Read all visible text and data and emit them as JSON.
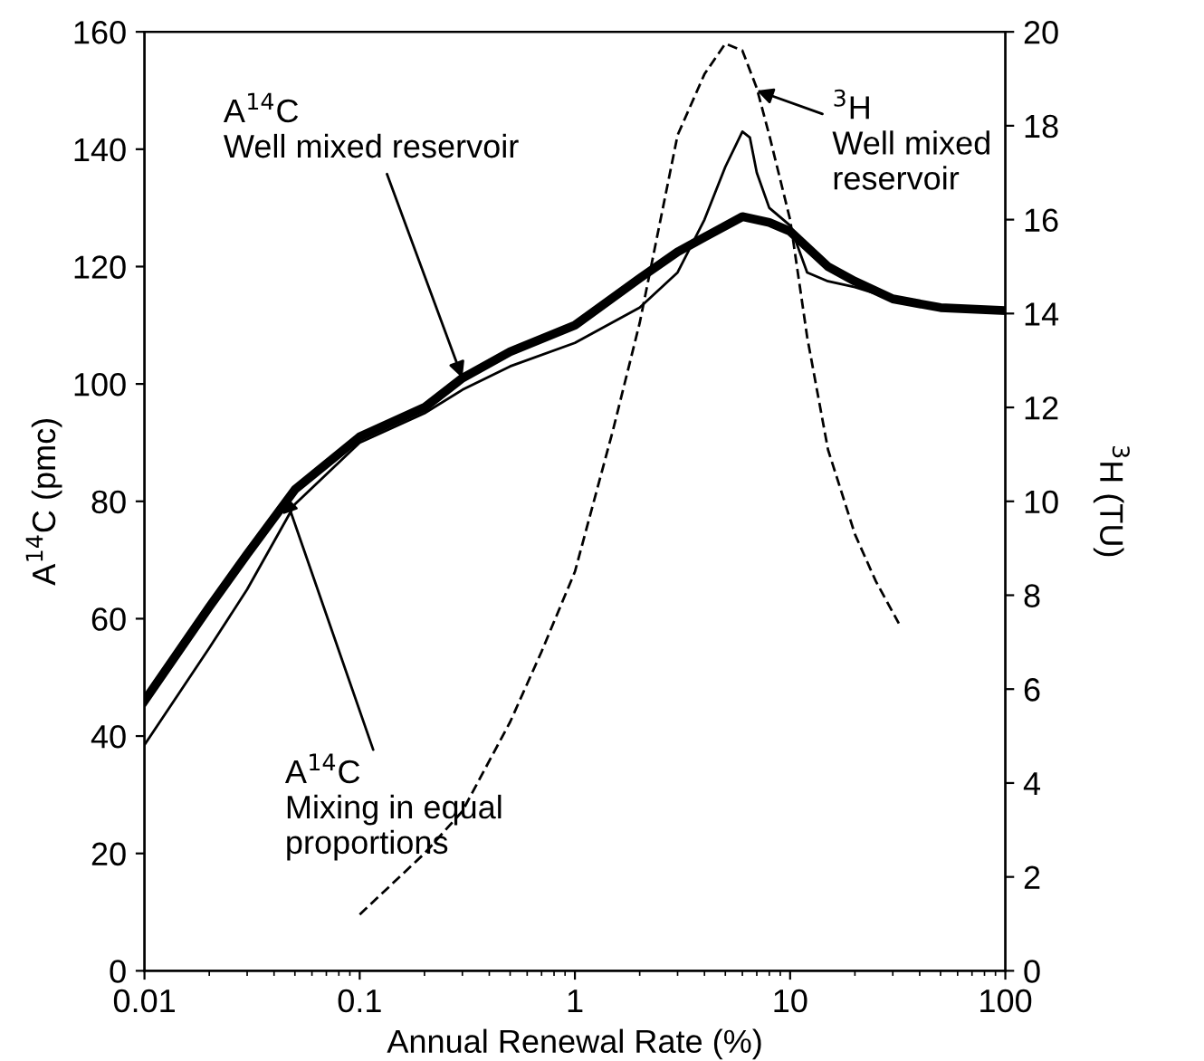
{
  "chart_data": {
    "type": "line",
    "xlabel": "Annual Renewal Rate (%)",
    "ylabel": "A$^{14}$C (pmc)",
    "y2label": "$^{3}$H (TU)",
    "log": "x",
    "xlim": [
      0.01,
      100
    ],
    "xticks": [
      0.01,
      0.1,
      1,
      10,
      100
    ],
    "ylim": [
      0,
      160
    ],
    "yticks": [
      0,
      20,
      40,
      60,
      80,
      100,
      120,
      140,
      160
    ],
    "y2lim": [
      0,
      20
    ],
    "y2ticks": [
      0,
      2,
      4,
      6,
      8,
      10,
      12,
      14,
      16,
      18,
      20
    ],
    "grid": false,
    "marker": "none",
    "series": [
      {
        "color": "#000000",
        "line_style": "solid",
        "x": [
          0.01,
          0.02,
          0.03,
          0.05,
          0.1,
          0.2,
          0.3,
          0.5,
          1,
          2,
          3,
          4,
          6,
          8,
          10,
          15,
          20,
          30,
          50,
          100
        ],
        "values": [
          46,
          62,
          71,
          82,
          91,
          96,
          101,
          105.5,
          110,
          118,
          122.5,
          125,
          128.5,
          127.5,
          126,
          120,
          117.5,
          114.5,
          113,
          112.5
        ]
      },
      {
        "color": "#000000",
        "line_style": "solid",
        "x": [
          0.01,
          0.02,
          0.03,
          0.05,
          0.1,
          0.2,
          0.3,
          0.5,
          1,
          2,
          3,
          4,
          5,
          6,
          6.5,
          7,
          8,
          10,
          12,
          15,
          20,
          30,
          50,
          100
        ],
        "values": [
          38.5,
          55,
          65,
          79.5,
          90,
          95,
          99,
          103,
          107,
          113,
          119,
          128,
          137,
          143,
          142,
          136,
          130,
          127,
          119,
          117.5,
          116.5,
          114.5,
          113,
          112.5
        ]
      },
      {
        "color": "#000000",
        "line_style": "dashed",
        "axis": "y2",
        "x": [
          0.1,
          0.2,
          0.3,
          0.5,
          0.7,
          1,
          1.5,
          2,
          3,
          4,
          5,
          6,
          7,
          8,
          10,
          12,
          15,
          20,
          25,
          32
        ],
        "values": [
          1.2,
          2.5,
          3.4,
          5.3,
          6.8,
          8.5,
          11.5,
          13.8,
          17.8,
          19.1,
          19.75,
          19.6,
          18.8,
          17.8,
          16,
          13.5,
          11.1,
          9.3,
          8.3,
          7.4
        ]
      }
    ],
    "annotations": [
      {
        "text": "A$^{14}$C\nWell mixed reservoir",
        "x": 0.3,
        "y": 101
      },
      {
        "text": "A$^{14}$C\nMixing in equal\nproportions",
        "x": 0.045,
        "y": 81
      },
      {
        "text": "$^{3}$H\nWell mixed\nreservoir",
        "x": 7,
        "y": 150
      }
    ]
  }
}
